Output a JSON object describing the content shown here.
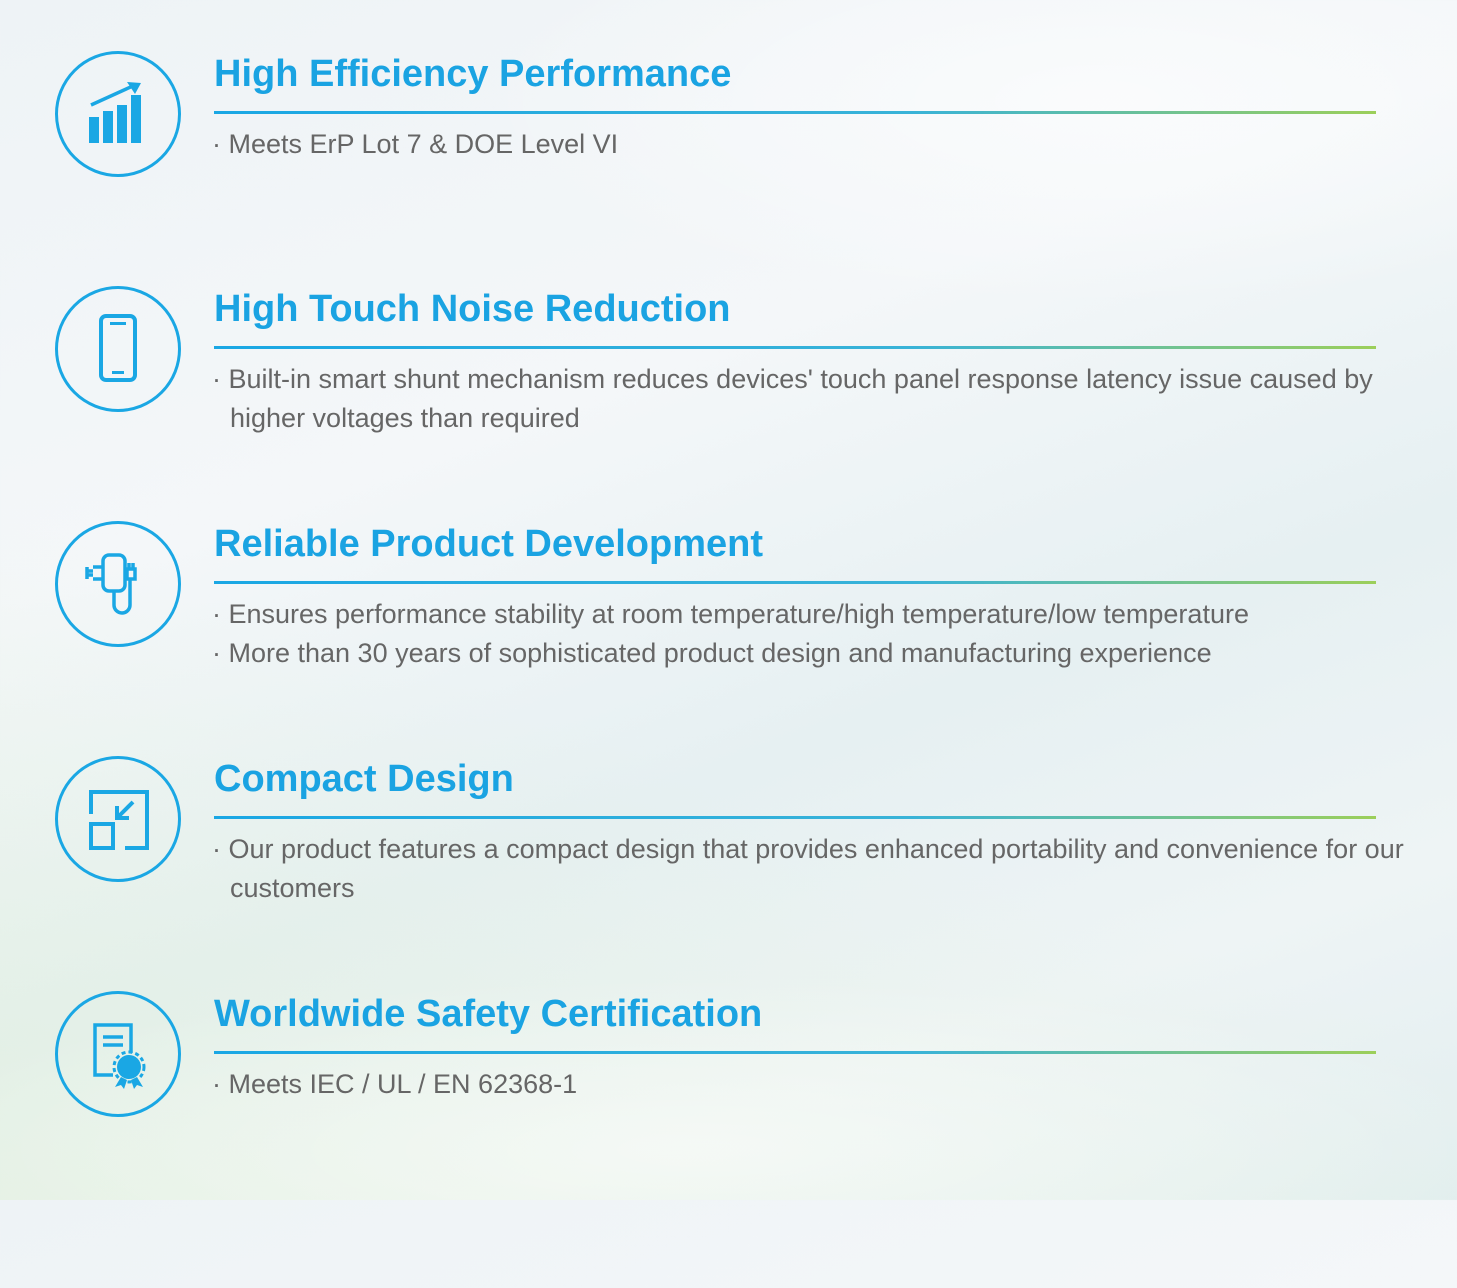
{
  "features": [
    {
      "icon": "chart-growth-icon",
      "title": "High Efficiency Performance",
      "bullets": [
        "· Meets ErP Lot 7 & DOE Level VI"
      ]
    },
    {
      "icon": "smartphone-icon",
      "title": "High Touch Noise Reduction",
      "bullets": [
        "· Built-in smart shunt mechanism reduces devices' touch panel response latency issue caused by higher voltages than required"
      ]
    },
    {
      "icon": "charger-plug-icon",
      "title": "Reliable Product Development",
      "bullets": [
        "· Ensures performance stability at room temperature/high temperature/low temperature",
        "· More than 30 years of sophisticated product  design and manufacturing experience"
      ]
    },
    {
      "icon": "compact-resize-icon",
      "title": "Compact Design",
      "bullets": [
        "· Our product features a compact design that provides enhanced portability and convenience for our customers"
      ]
    },
    {
      "icon": "certificate-icon",
      "title": "Worldwide Safety Certification",
      "bullets": [
        "· Meets IEC / UL / EN 62368-1"
      ]
    }
  ],
  "colors": {
    "accent": "#1aa3e2",
    "text": "#666666",
    "rule_end": "#9ccf5a"
  }
}
